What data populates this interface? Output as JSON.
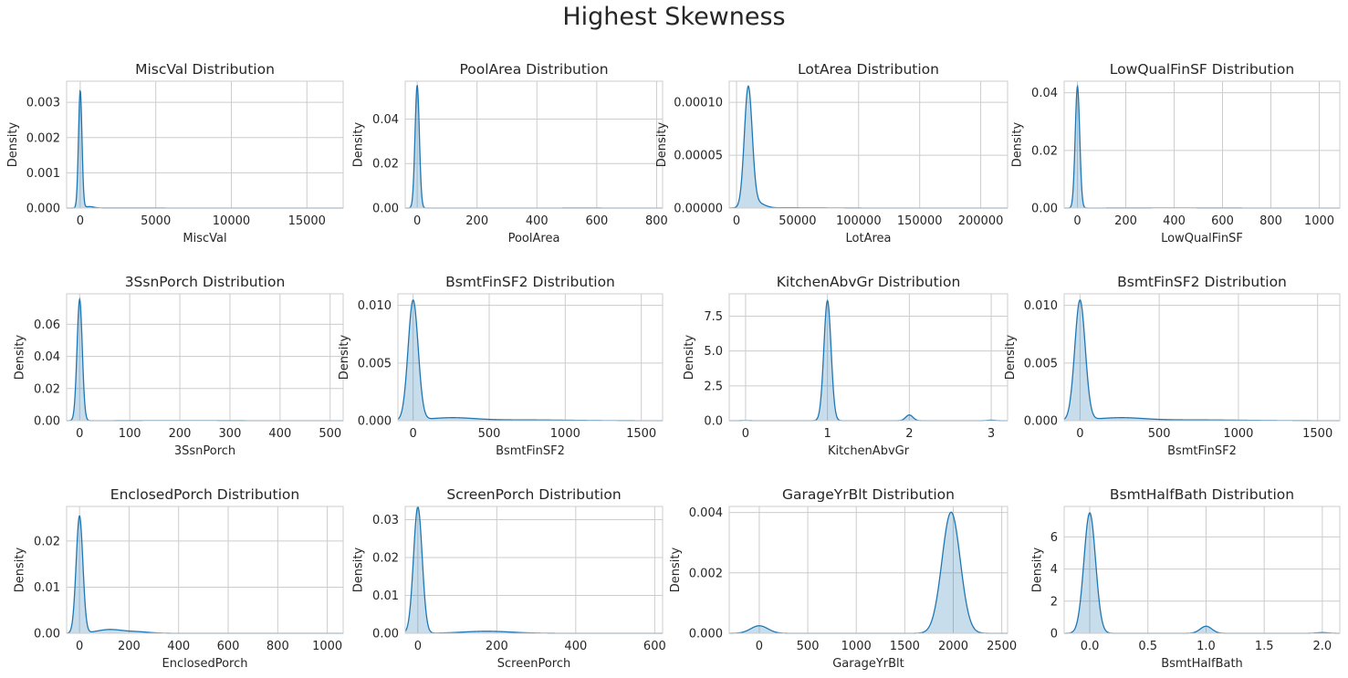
{
  "figure": {
    "title": "Highest Skewness"
  },
  "colors": {
    "line": "#1f77b4",
    "fill": "#1f77b4",
    "grid": "#cccccc",
    "text": "#262626"
  },
  "chart_data": [
    {
      "type": "area",
      "title": "MiscVal Distribution",
      "xlabel": "MiscVal",
      "ylabel": "Density",
      "xlim": [
        -900,
        17400
      ],
      "ylim": [
        0,
        0.0036
      ],
      "xticks": [
        0,
        5000,
        10000,
        15000
      ],
      "xtick_labels": [
        "0",
        "5000",
        "10000",
        "15000"
      ],
      "yticks": [
        0,
        0.001,
        0.002,
        0.003
      ],
      "ytick_labels": [
        "0.000",
        "0.001",
        "0.002",
        "0.003"
      ],
      "components": [
        {
          "mu": 0,
          "sigma": 115,
          "w": 0.96
        },
        {
          "mu": 600,
          "sigma": 300,
          "w": 0.03
        },
        {
          "mu": 3000,
          "sigma": 3000,
          "w": 0.01
        }
      ]
    },
    {
      "type": "area",
      "title": "PoolArea Distribution",
      "xlabel": "PoolArea",
      "ylabel": "Density",
      "xlim": [
        -40,
        820
      ],
      "ylim": [
        0,
        0.057
      ],
      "xticks": [
        0,
        200,
        400,
        600,
        800
      ],
      "xtick_labels": [
        "0",
        "200",
        "400",
        "600",
        "800"
      ],
      "yticks": [
        0,
        0.02,
        0.04
      ],
      "ytick_labels": [
        "0.00",
        "0.02",
        "0.04"
      ],
      "components": [
        {
          "mu": 0,
          "sigma": 7.2,
          "w": 0.995
        },
        {
          "mu": 550,
          "sigma": 120,
          "w": 0.005
        }
      ]
    },
    {
      "type": "area",
      "title": "LotArea Distribution",
      "xlabel": "LotArea",
      "ylabel": "Density",
      "xlim": [
        -6000,
        222000
      ],
      "ylim": [
        0,
        0.00012
      ],
      "xticks": [
        0,
        50000,
        100000,
        150000,
        200000
      ],
      "xtick_labels": [
        "0",
        "50000",
        "100000",
        "150000",
        "200000"
      ],
      "yticks": [
        0,
        5e-05,
        0.0001
      ],
      "ytick_labels": [
        "0.00000",
        "0.00005",
        "0.00010"
      ],
      "components": [
        {
          "mu": 9600,
          "sigma": 3200,
          "w": 0.9
        },
        {
          "mu": 16000,
          "sigma": 6000,
          "w": 0.08
        },
        {
          "mu": 40000,
          "sigma": 30000,
          "w": 0.02
        }
      ]
    },
    {
      "type": "area",
      "title": "LowQualFinSF Distribution",
      "xlabel": "LowQualFinSF",
      "ylabel": "Density",
      "xlim": [
        -55,
        1085
      ],
      "ylim": [
        0,
        0.044
      ],
      "xticks": [
        0,
        200,
        400,
        600,
        800,
        1000
      ],
      "xtick_labels": [
        "0",
        "200",
        "400",
        "600",
        "800",
        "1000"
      ],
      "yticks": [
        0,
        0.02,
        0.04
      ],
      "ytick_labels": [
        "0.00",
        "0.02",
        "0.04"
      ],
      "components": [
        {
          "mu": 0,
          "sigma": 9.3,
          "w": 0.985
        },
        {
          "mu": 400,
          "sigma": 200,
          "w": 0.015
        }
      ]
    },
    {
      "type": "area",
      "title": "3SsnPorch Distribution",
      "xlabel": "3SsnPorch",
      "ylabel": "Density",
      "xlim": [
        -26,
        526
      ],
      "ylim": [
        0,
        0.079
      ],
      "xticks": [
        0,
        100,
        200,
        300,
        400,
        500
      ],
      "xtick_labels": [
        "0",
        "100",
        "200",
        "300",
        "400",
        "500"
      ],
      "yticks": [
        0,
        0.02,
        0.04,
        0.06
      ],
      "ytick_labels": [
        "0.00",
        "0.02",
        "0.04",
        "0.06"
      ],
      "components": [
        {
          "mu": 0,
          "sigma": 5.2,
          "w": 0.985
        },
        {
          "mu": 200,
          "sigma": 80,
          "w": 0.015
        }
      ]
    },
    {
      "type": "area",
      "title": "BsmtFinSF2 Distribution",
      "xlabel": "BsmtFinSF2",
      "ylabel": "Density",
      "xlim": [
        -100,
        1640
      ],
      "ylim": [
        0,
        0.011
      ],
      "xticks": [
        0,
        500,
        1000,
        1500
      ],
      "xtick_labels": [
        "0",
        "500",
        "1000",
        "1500"
      ],
      "yticks": [
        0,
        0.005,
        0.01
      ],
      "ytick_labels": [
        "0.000",
        "0.005",
        "0.010"
      ],
      "components": [
        {
          "mu": 0,
          "sigma": 33,
          "w": 0.86
        },
        {
          "mu": 250,
          "sigma": 150,
          "w": 0.09
        },
        {
          "mu": 700,
          "sigma": 300,
          "w": 0.05
        }
      ]
    },
    {
      "type": "area",
      "title": "KitchenAbvGr Distribution",
      "xlabel": "KitchenAbvGr",
      "ylabel": "Density",
      "xlim": [
        -0.2,
        3.2
      ],
      "ylim": [
        0,
        9.1
      ],
      "xticks": [
        0,
        1,
        2,
        3
      ],
      "xtick_labels": [
        "0",
        "1",
        "2",
        "3"
      ],
      "yticks": [
        0,
        2.5,
        5,
        7.5
      ],
      "ytick_labels": [
        "0.0",
        "2.5",
        "5.0",
        "7.5"
      ],
      "components": [
        {
          "mu": 0,
          "sigma": 0.045,
          "w": 0.001
        },
        {
          "mu": 1,
          "sigma": 0.044,
          "w": 0.95
        },
        {
          "mu": 2,
          "sigma": 0.044,
          "w": 0.045
        },
        {
          "mu": 3,
          "sigma": 0.045,
          "w": 0.004
        }
      ]
    },
    {
      "type": "area",
      "title": "BsmtFinSF2 Distribution",
      "xlabel": "BsmtFinSF2",
      "ylabel": "Density",
      "xlim": [
        -100,
        1640
      ],
      "ylim": [
        0,
        0.011
      ],
      "xticks": [
        0,
        500,
        1000,
        1500
      ],
      "xtick_labels": [
        "0",
        "500",
        "1000",
        "1500"
      ],
      "yticks": [
        0,
        0.005,
        0.01
      ],
      "ytick_labels": [
        "0.000",
        "0.005",
        "0.010"
      ],
      "components": [
        {
          "mu": 0,
          "sigma": 33,
          "w": 0.86
        },
        {
          "mu": 250,
          "sigma": 150,
          "w": 0.09
        },
        {
          "mu": 700,
          "sigma": 300,
          "w": 0.05
        }
      ]
    },
    {
      "type": "area",
      "title": "EnclosedPorch Distribution",
      "xlabel": "EnclosedPorch",
      "ylabel": "Density",
      "xlim": [
        -52,
        1064
      ],
      "ylim": [
        0,
        0.0275
      ],
      "xticks": [
        0,
        200,
        400,
        600,
        800,
        1000
      ],
      "xtick_labels": [
        "0",
        "200",
        "400",
        "600",
        "800",
        "1000"
      ],
      "yticks": [
        0,
        0.01,
        0.02
      ],
      "ytick_labels": [
        "0.00",
        "0.01",
        "0.02"
      ],
      "components": [
        {
          "mu": 0,
          "sigma": 13.5,
          "w": 0.86
        },
        {
          "mu": 120,
          "sigma": 50,
          "w": 0.1
        },
        {
          "mu": 230,
          "sigma": 50,
          "w": 0.04
        }
      ]
    },
    {
      "type": "area",
      "title": "ScreenPorch Distribution",
      "xlabel": "ScreenPorch",
      "ylabel": "Density",
      "xlim": [
        -32,
        620
      ],
      "ylim": [
        0,
        0.0335
      ],
      "xticks": [
        0,
        200,
        400,
        600
      ],
      "xtick_labels": [
        "0",
        "200",
        "400",
        "600"
      ],
      "yticks": [
        0,
        0.01,
        0.02,
        0.03
      ],
      "ytick_labels": [
        "0.00",
        "0.01",
        "0.02",
        "0.03"
      ],
      "components": [
        {
          "mu": 0,
          "sigma": 11,
          "w": 0.92
        },
        {
          "mu": 175,
          "sigma": 60,
          "w": 0.08
        }
      ]
    },
    {
      "type": "area",
      "title": "GarageYrBlt Distribution",
      "xlabel": "GarageYrBlt",
      "ylabel": "Density",
      "xlim": [
        -310,
        2560
      ],
      "ylim": [
        0,
        0.0042
      ],
      "xticks": [
        0,
        500,
        1000,
        1500,
        2000,
        2500
      ],
      "xtick_labels": [
        "0",
        "500",
        "1000",
        "1500",
        "2000",
        "2500"
      ],
      "yticks": [
        0,
        0.002,
        0.004
      ],
      "ytick_labels": [
        "0.000",
        "0.002",
        "0.004"
      ],
      "components": [
        {
          "mu": 0,
          "sigma": 88,
          "w": 0.055
        },
        {
          "mu": 1978,
          "sigma": 94,
          "w": 0.945
        }
      ]
    },
    {
      "type": "area",
      "title": "BsmtHalfBath Distribution",
      "xlabel": "BsmtHalfBath",
      "ylabel": "Density",
      "xlim": [
        -0.22,
        2.15
      ],
      "ylim": [
        0,
        7.9
      ],
      "xticks": [
        0,
        0.5,
        1,
        1.5,
        2
      ],
      "xtick_labels": [
        "0.0",
        "0.5",
        "1.0",
        "1.5",
        "2.0"
      ],
      "yticks": [
        0,
        2,
        4,
        6
      ],
      "ytick_labels": [
        "0",
        "2",
        "4",
        "6"
      ],
      "components": [
        {
          "mu": 0,
          "sigma": 0.05,
          "w": 0.94
        },
        {
          "mu": 1,
          "sigma": 0.05,
          "w": 0.055
        },
        {
          "mu": 2,
          "sigma": 0.05,
          "w": 0.005
        }
      ]
    }
  ]
}
